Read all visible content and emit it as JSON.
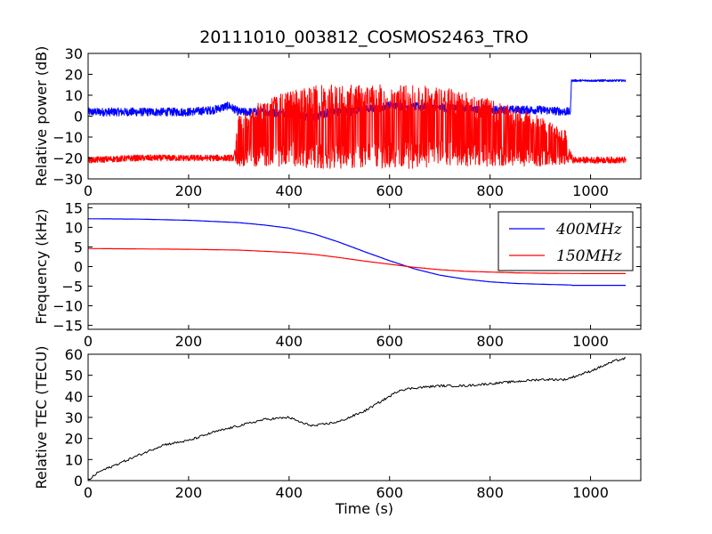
{
  "title": "20111010_003812_COSMOS2463_TRO",
  "chart_data": [
    {
      "type": "line",
      "ylabel": "Relative power (dB)",
      "xlabel": "",
      "xlim": [
        0,
        1100
      ],
      "ylim": [
        -30,
        30
      ],
      "xticks": [
        "0",
        "200",
        "400",
        "600",
        "800",
        "1000"
      ],
      "yticks": [
        "30",
        "20",
        "10",
        "0",
        "−10",
        "−20",
        "−30"
      ],
      "legend": "none",
      "grid": false,
      "series": [
        {
          "color": "#0000ff",
          "x": [
            0,
            100,
            200,
            250,
            280,
            300,
            350,
            400,
            430,
            450,
            480,
            500,
            520,
            600,
            700,
            800,
            900,
            960,
            962,
            1000,
            1070
          ],
          "y": [
            2,
            2,
            2,
            3,
            5,
            2,
            2,
            1,
            0,
            -1,
            2,
            2,
            2,
            5,
            4,
            3,
            3,
            2,
            17,
            17,
            17
          ],
          "spread": [
            4,
            4,
            4,
            4,
            4,
            4,
            4,
            4,
            4,
            4,
            4,
            4,
            4,
            4,
            4,
            4,
            4,
            4,
            1,
            1,
            1
          ]
        },
        {
          "color": "#ff0000",
          "x": [
            0,
            100,
            200,
            250,
            290,
            300,
            350,
            400,
            450,
            500,
            550,
            600,
            650,
            700,
            750,
            800,
            850,
            900,
            950,
            965,
            1000,
            1070
          ],
          "y": [
            -21,
            -20,
            -20,
            -20,
            -20,
            -12,
            -8,
            -6,
            -5,
            -5,
            -5,
            -5,
            -5,
            -5,
            -6,
            -8,
            -10,
            -12,
            -15,
            -21,
            -21,
            -21
          ],
          "spread": [
            3,
            3,
            3,
            3,
            3,
            12,
            16,
            18,
            20,
            20,
            20,
            20,
            20,
            19,
            18,
            16,
            14,
            12,
            8,
            3,
            3,
            3
          ]
        }
      ]
    },
    {
      "type": "line",
      "ylabel": "Frequency (kHz)",
      "xlabel": "",
      "xlim": [
        0,
        1100
      ],
      "ylim": [
        -16,
        16
      ],
      "xticks": [
        "0",
        "200",
        "400",
        "600",
        "800",
        "1000"
      ],
      "yticks": [
        "15",
        "10",
        "5",
        "0",
        "−5",
        "−10",
        "−15"
      ],
      "legend": "top-right",
      "grid": false,
      "series": [
        {
          "name": "400MHz",
          "color": "#0000ff",
          "x": [
            0,
            100,
            200,
            300,
            350,
            400,
            450,
            500,
            550,
            600,
            650,
            700,
            750,
            800,
            850,
            900,
            960,
            965,
            1070
          ],
          "y": [
            12.2,
            12.1,
            11.8,
            11.2,
            10.6,
            9.8,
            8.3,
            6.2,
            3.8,
            1.5,
            -0.6,
            -2.2,
            -3.2,
            -3.9,
            -4.3,
            -4.5,
            -4.7,
            -4.8,
            -4.8
          ]
        },
        {
          "name": "150MHz",
          "color": "#ff0000",
          "x": [
            0,
            100,
            200,
            300,
            350,
            400,
            450,
            500,
            550,
            600,
            650,
            700,
            750,
            800,
            850,
            900,
            1000,
            1070
          ],
          "y": [
            4.6,
            4.5,
            4.4,
            4.2,
            3.9,
            3.6,
            3.1,
            2.3,
            1.4,
            0.6,
            -0.2,
            -0.8,
            -1.2,
            -1.4,
            -1.6,
            -1.7,
            -1.8,
            -1.8
          ]
        }
      ]
    },
    {
      "type": "line",
      "ylabel": "Relative TEC (TECU)",
      "xlabel": "Time (s)",
      "xlim": [
        0,
        1100
      ],
      "ylim": [
        0,
        60
      ],
      "xticks": [
        "0",
        "200",
        "400",
        "600",
        "800",
        "1000"
      ],
      "yticks": [
        "60",
        "50",
        "40",
        "30",
        "20",
        "10",
        "0"
      ],
      "legend": "none",
      "grid": false,
      "series": [
        {
          "color": "#000000",
          "x": [
            0,
            20,
            50,
            100,
            150,
            200,
            250,
            300,
            350,
            400,
            430,
            450,
            500,
            550,
            600,
            620,
            650,
            700,
            750,
            800,
            850,
            900,
            950,
            1000,
            1050,
            1070
          ],
          "y": [
            0,
            4,
            7,
            12,
            17,
            19,
            23,
            26,
            29,
            30,
            27,
            26,
            28,
            33,
            40,
            43,
            44,
            45,
            45,
            46,
            47,
            48,
            48,
            52,
            57,
            58
          ]
        }
      ]
    }
  ]
}
